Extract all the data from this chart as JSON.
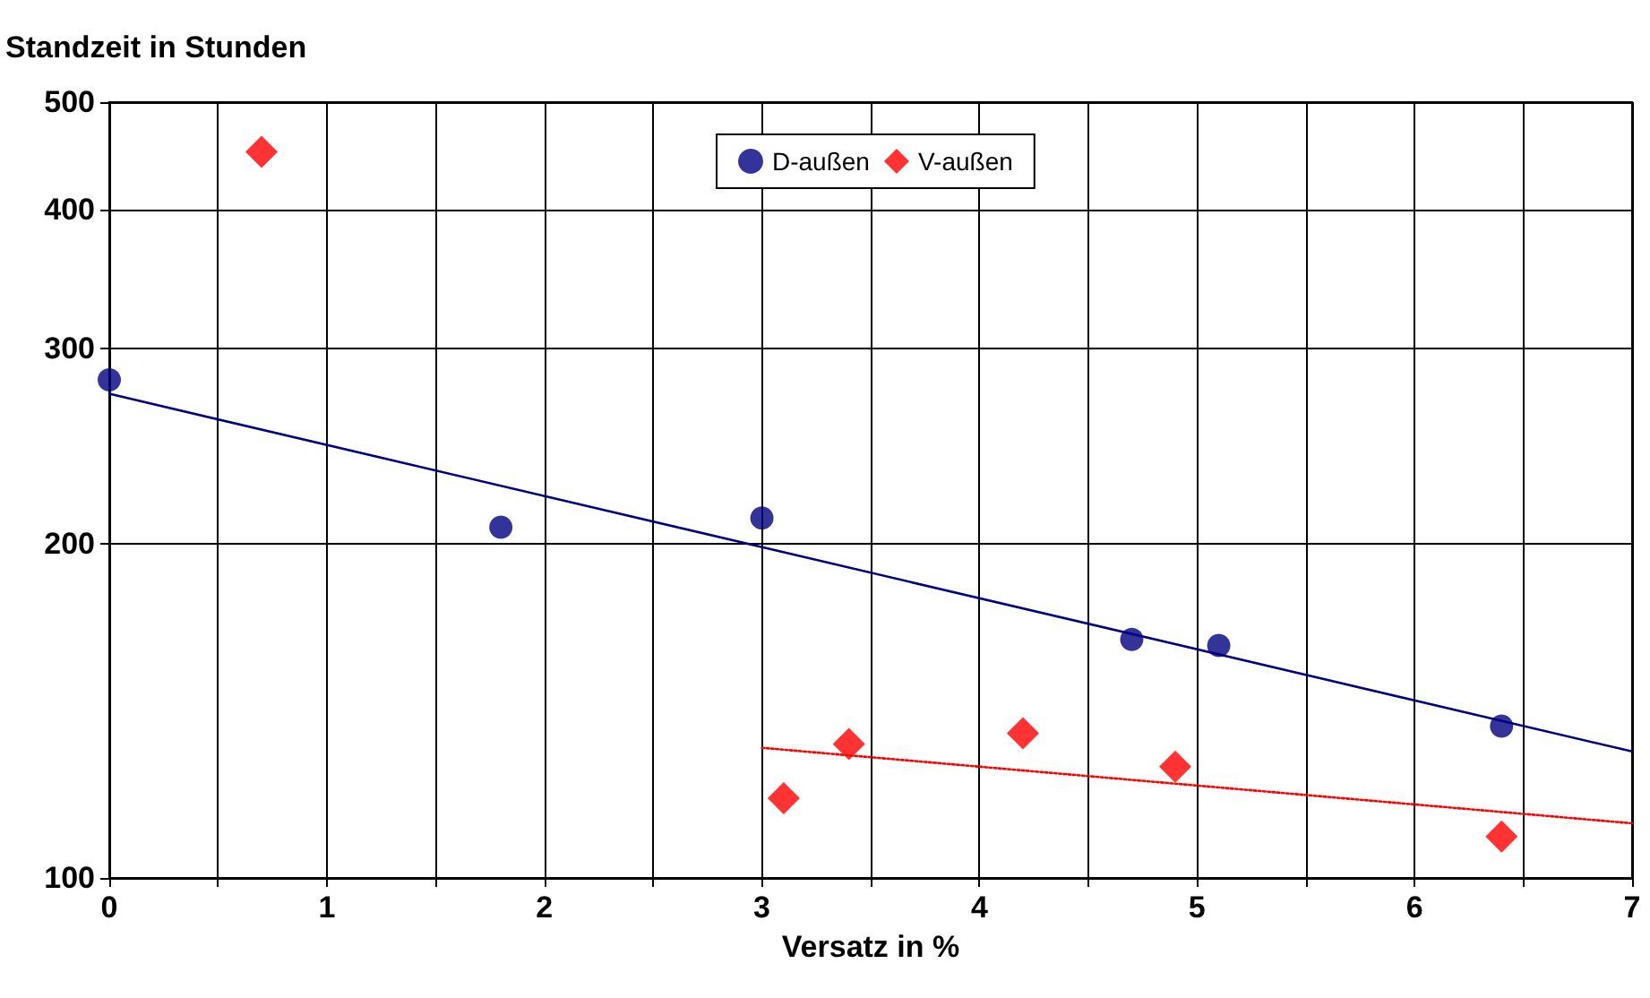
{
  "chart_data": {
    "type": "scatter",
    "ylabel": "Standzeit in Stunden",
    "xlabel": "Versatz in %",
    "xlim": [
      0,
      7
    ],
    "xticks": [
      0,
      {
        "value": 0.5,
        "label": null
      },
      1,
      {
        "value": 1.5,
        "label": null
      },
      2,
      {
        "value": 2.5,
        "label": null
      },
      3,
      {
        "value": 3.5,
        "label": null
      },
      4,
      {
        "value": 4.5,
        "label": null
      },
      5,
      {
        "value": 5.5,
        "label": null
      },
      6,
      {
        "value": 6.5,
        "label": null
      },
      7
    ],
    "ylim": [
      100,
      500
    ],
    "yticks": [
      100,
      200,
      300,
      400,
      500
    ],
    "log": "y",
    "grid": true,
    "legend": "top",
    "series": [
      {
        "name": "D-außen",
        "color": "#000080",
        "marker": "circle",
        "x": [
          0,
          1.8,
          3,
          4.7,
          5.1,
          6.4
        ],
        "values": [
          281,
          207,
          211,
          164,
          162,
          137
        ]
      },
      {
        "name": "V-außen",
        "color": "#ff0000",
        "marker": "diamond",
        "x": [
          0.7,
          3.1,
          3.4,
          4.2,
          4.9,
          6.4
        ],
        "values": [
          451,
          118,
          132,
          135,
          126,
          109
        ]
      },
      {
        "type": "line",
        "color": "#000080",
        "marker": "none",
        "line_style": "solid",
        "x": [
          0,
          7
        ],
        "values": [
          273,
          130
        ]
      },
      {
        "type": "line",
        "color": "#ff0000",
        "marker": "none",
        "line_style": "dotted",
        "x": [
          3,
          7
        ],
        "values": [
          131,
          112
        ]
      }
    ]
  }
}
